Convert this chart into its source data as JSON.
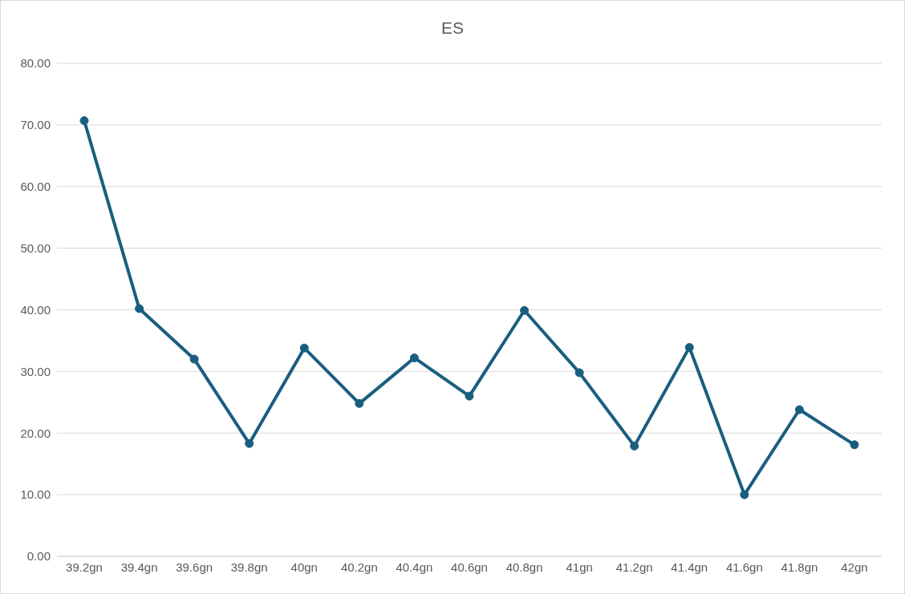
{
  "chart_data": {
    "type": "line",
    "title": "ES",
    "categories": [
      "39.2gn",
      "39.4gn",
      "39.6gn",
      "39.8gn",
      "40gn",
      "40.2gn",
      "40.4gn",
      "40.6gn",
      "40.8gn",
      "41gn",
      "41.2gn",
      "41.4gn",
      "41.6gn",
      "41.8gn",
      "42gn"
    ],
    "series": [
      {
        "color": "#195e7f",
        "values": [
          70.7,
          40.2,
          32.0,
          18.3,
          33.8,
          24.8,
          32.2,
          26.0,
          39.9,
          29.8,
          17.9,
          33.9,
          10.0,
          23.8,
          18.1
        ]
      }
    ],
    "ylim": [
      0,
      80
    ],
    "yticks": [
      {
        "value": 0,
        "label": "0.00"
      },
      {
        "value": 10,
        "label": "10.00"
      },
      {
        "value": 20,
        "label": "20.00"
      },
      {
        "value": 30,
        "label": "30.00"
      },
      {
        "value": 40,
        "label": "40.00"
      },
      {
        "value": 50,
        "label": "50.00"
      },
      {
        "value": 60,
        "label": "60.00"
      },
      {
        "value": 70,
        "label": "70.00"
      },
      {
        "value": 80,
        "label": "80.00"
      }
    ],
    "grid": "y",
    "legend": false,
    "marker": "circle",
    "line_style": "solid"
  }
}
